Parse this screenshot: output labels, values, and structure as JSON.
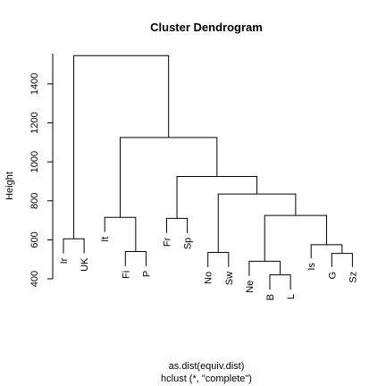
{
  "chart_data": {
    "type": "dendrogram",
    "title": "Cluster Dendrogram",
    "ylabel": "Height",
    "xlabel_lines": [
      "as.dist(equiv.dist)",
      "hclust (*, \"complete\")"
    ],
    "ylim": [
      400,
      1560
    ],
    "yticks": [
      400,
      600,
      800,
      1000,
      1200,
      1400
    ],
    "leaves": [
      {
        "label": "Ir",
        "height": 530
      },
      {
        "label": "UK",
        "height": 530
      },
      {
        "label": "It",
        "height": 640
      },
      {
        "label": "Fi",
        "height": 465
      },
      {
        "label": "P",
        "height": 465
      },
      {
        "label": "Fr",
        "height": 635
      },
      {
        "label": "Sp",
        "height": 635
      },
      {
        "label": "No",
        "height": 460
      },
      {
        "label": "Sw",
        "height": 460
      },
      {
        "label": "Ne",
        "height": 415
      },
      {
        "label": "B",
        "height": 345
      },
      {
        "label": "L",
        "height": 345
      },
      {
        "label": "Is",
        "height": 505
      },
      {
        "label": "G",
        "height": 460
      },
      {
        "label": "Sz",
        "height": 460
      }
    ],
    "merges": [
      {
        "left": "leaf:Ir",
        "right": "leaf:UK",
        "height": 605
      },
      {
        "left": "leaf:Fi",
        "right": "leaf:P",
        "height": 540
      },
      {
        "left": "leaf:It",
        "right": "node:1",
        "height": 715
      },
      {
        "left": "leaf:Fr",
        "right": "leaf:Sp",
        "height": 710
      },
      {
        "left": "leaf:No",
        "right": "leaf:Sw",
        "height": 535
      },
      {
        "left": "leaf:B",
        "right": "leaf:L",
        "height": 420
      },
      {
        "left": "leaf:Ne",
        "right": "node:5",
        "height": 490
      },
      {
        "left": "leaf:G",
        "right": "leaf:Sz",
        "height": 530
      },
      {
        "left": "leaf:Is",
        "right": "node:7",
        "height": 575
      },
      {
        "left": "node:6",
        "right": "node:8",
        "height": 725
      },
      {
        "left": "node:4",
        "right": "node:9",
        "height": 835
      },
      {
        "left": "node:3",
        "right": "node:10",
        "height": 925
      },
      {
        "left": "node:2",
        "right": "node:11",
        "height": 1125
      },
      {
        "left": "node:0",
        "right": "node:12",
        "height": 1545
      }
    ]
  }
}
